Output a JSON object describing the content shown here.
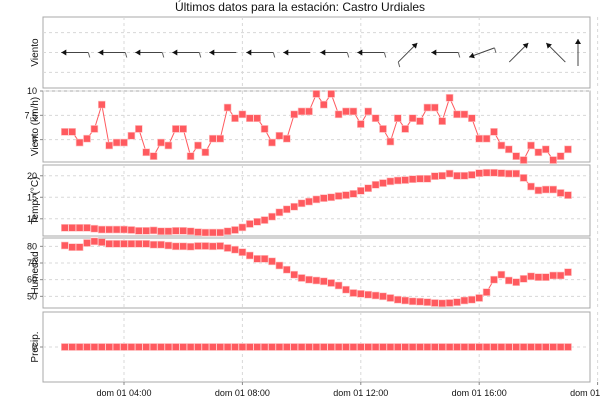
{
  "chart_data": {
    "type": "line",
    "title": "Últimos datos para la estación: Castro Urdiales",
    "x_start": "dom 01 02:00",
    "x_interval_minutes": 15,
    "x_ticks": [
      "dom 01 04:00",
      "dom 01 08:00",
      "dom 01 12:00",
      "dom 01 16:00",
      "dom 01 20:00"
    ],
    "series_color": "#ff5a5f",
    "panels": [
      {
        "name": "wind-direction",
        "ylabel": "Viento",
        "type": "wind-arrows",
        "arrows": [
          {
            "hour": 2.0,
            "dir": "W",
            "barb": true
          },
          {
            "hour": 3.25,
            "dir": "W",
            "barb": true
          },
          {
            "hour": 4.5,
            "dir": "W",
            "barb": true
          },
          {
            "hour": 5.75,
            "dir": "W",
            "barb": true
          },
          {
            "hour": 7.0,
            "dir": "W",
            "barb": false
          },
          {
            "hour": 8.25,
            "dir": "W",
            "barb": true
          },
          {
            "hour": 9.5,
            "dir": "W",
            "barb": false
          },
          {
            "hour": 10.75,
            "dir": "W",
            "barb": true
          },
          {
            "hour": 12.0,
            "dir": "W",
            "barb": true
          },
          {
            "hour": 13.25,
            "dir": "NE",
            "barb": true
          },
          {
            "hour": 14.5,
            "dir": "W",
            "barb": true
          },
          {
            "hour": 15.75,
            "dir": "WNW",
            "barb": true
          },
          {
            "hour": 17.0,
            "dir": "NE",
            "barb": false
          },
          {
            "hour": 18.25,
            "dir": "NW",
            "barb": false
          },
          {
            "hour": 19.0,
            "dir": "N",
            "barb": false
          }
        ]
      },
      {
        "name": "wind-speed",
        "ylabel": "Viento (km/h)",
        "yticks": [
          5,
          7.5,
          10
        ],
        "ytick_labels": [
          "5",
          "7,5",
          "10"
        ],
        "ylim": [
          2.7,
          10
        ],
        "values": [
          5.8,
          5.8,
          4.7,
          5.1,
          6.1,
          8.6,
          4.4,
          4.7,
          4.7,
          5.4,
          6.1,
          3.7,
          3.3,
          4.7,
          4.4,
          6.1,
          6.1,
          3.3,
          4.4,
          3.7,
          5.1,
          5.1,
          8.3,
          7.2,
          7.6,
          7.2,
          7.2,
          6.1,
          4.7,
          5.4,
          5.1,
          7.6,
          7.9,
          7.9,
          9.7,
          8.6,
          9.7,
          7.6,
          7.9,
          7.9,
          6.6,
          7.9,
          7.2,
          6.1,
          4.8,
          7.2,
          6.1,
          7.2,
          6.9,
          8.3,
          8.3,
          6.9,
          9.3,
          7.6,
          7.6,
          7.2,
          5.1,
          5.1,
          5.8,
          4.4,
          4.0,
          3.3,
          2.9,
          4.4,
          3.7,
          4.0,
          2.9,
          3.3,
          4.0
        ]
      },
      {
        "name": "temperature",
        "ylabel": "Temp. (°C)",
        "yticks": [
          10,
          15,
          20
        ],
        "ytick_labels": [
          "10",
          "15",
          "20"
        ],
        "ylim": [
          6.0,
          22.5
        ],
        "values": [
          7.9,
          7.9,
          7.9,
          7.9,
          7.7,
          7.5,
          7.5,
          7.5,
          7.5,
          7.4,
          7.2,
          7.2,
          7.3,
          7.1,
          7.1,
          7.2,
          7.2,
          7.1,
          6.9,
          6.8,
          6.8,
          6.8,
          7.1,
          7.4,
          8.0,
          8.8,
          9.3,
          9.7,
          10.5,
          11.5,
          12.2,
          12.8,
          13.6,
          14.0,
          14.5,
          14.8,
          15.0,
          15.3,
          15.5,
          15.8,
          16.5,
          17.1,
          17.9,
          18.3,
          18.7,
          18.9,
          19.0,
          19.2,
          19.3,
          19.3,
          19.9,
          20.0,
          20.5,
          20.0,
          20.0,
          20.2,
          20.6,
          20.7,
          20.7,
          20.6,
          20.5,
          20.5,
          19.5,
          17.5,
          16.6,
          16.8,
          16.8,
          16.0,
          15.5
        ]
      },
      {
        "name": "humidity",
        "ylabel": "Humedad",
        "yticks": [
          50,
          60,
          70,
          80
        ],
        "ytick_labels": [
          "50",
          "60",
          "70",
          "80"
        ],
        "ylim": [
          43,
          85
        ],
        "values": [
          80.5,
          79.5,
          79.5,
          82,
          83,
          82.5,
          81.5,
          81.5,
          81.5,
          81.5,
          81.5,
          81.5,
          81,
          81,
          80.5,
          80,
          80,
          79.8,
          80.2,
          80.2,
          80,
          80.2,
          79,
          78,
          76.5,
          74.5,
          72.5,
          72.5,
          71,
          68.5,
          66,
          63,
          61,
          60,
          59.5,
          59,
          58,
          56.5,
          54,
          52,
          51.5,
          51,
          50.5,
          50,
          49,
          48,
          47.5,
          47,
          46.8,
          46.5,
          46,
          45.8,
          46,
          46.5,
          47.5,
          48,
          49,
          52.5,
          60,
          63,
          59.5,
          58.5,
          60.5,
          62,
          61.5,
          61.5,
          62.5,
          62.5,
          64.5
        ]
      },
      {
        "name": "precipitation",
        "ylabel": "Precip.",
        "yticks": [
          0
        ],
        "ytick_labels": [
          "0"
        ],
        "ylim": [
          -1,
          1
        ],
        "values": [
          0,
          0,
          0,
          0,
          0,
          0,
          0,
          0,
          0,
          0,
          0,
          0,
          0,
          0,
          0,
          0,
          0,
          0,
          0,
          0,
          0,
          0,
          0,
          0,
          0,
          0,
          0,
          0,
          0,
          0,
          0,
          0,
          0,
          0,
          0,
          0,
          0,
          0,
          0,
          0,
          0,
          0,
          0,
          0,
          0,
          0,
          0,
          0,
          0,
          0,
          0,
          0,
          0,
          0,
          0,
          0,
          0,
          0,
          0,
          0,
          0,
          0,
          0,
          0,
          0,
          0,
          0,
          0,
          0
        ]
      }
    ],
    "grid": true,
    "legend": "none"
  }
}
